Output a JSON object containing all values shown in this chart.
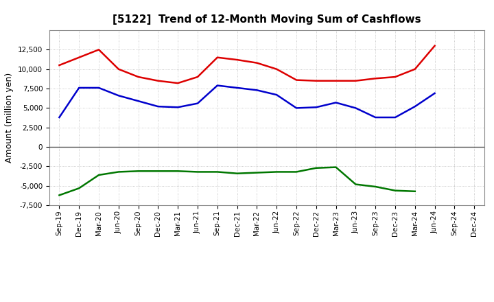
{
  "title": "[5122]  Trend of 12-Month Moving Sum of Cashflows",
  "ylabel": "Amount (million yen)",
  "x_labels": [
    "Sep-19",
    "Dec-19",
    "Mar-20",
    "Jun-20",
    "Sep-20",
    "Dec-20",
    "Mar-21",
    "Jun-21",
    "Sep-21",
    "Dec-21",
    "Mar-22",
    "Jun-22",
    "Sep-22",
    "Dec-22",
    "Mar-23",
    "Jun-23",
    "Sep-23",
    "Dec-23",
    "Mar-24",
    "Jun-24",
    "Sep-24",
    "Dec-24"
  ],
  "operating": [
    10500,
    11500,
    12500,
    10000,
    9000,
    8500,
    8200,
    9000,
    11500,
    11200,
    10800,
    10000,
    8600,
    8500,
    8500,
    8500,
    8800,
    9000,
    10000,
    13000,
    null,
    null
  ],
  "investing": [
    -6200,
    -5300,
    -3600,
    -3200,
    -3100,
    -3100,
    -3100,
    -3200,
    -3200,
    -3400,
    -3300,
    -3200,
    -3200,
    -2700,
    -2600,
    -4800,
    -5100,
    -5600,
    -5700,
    null,
    null,
    null
  ],
  "free": [
    3800,
    7600,
    7600,
    6600,
    5900,
    5200,
    5100,
    5600,
    7900,
    7600,
    7300,
    6700,
    5000,
    5100,
    5700,
    5000,
    3800,
    3800,
    5200,
    6900,
    null,
    null
  ],
  "ylim": [
    -7500,
    15000
  ],
  "yticks": [
    -7500,
    -5000,
    -2500,
    0,
    2500,
    5000,
    7500,
    10000,
    12500
  ],
  "operating_color": "#dd0000",
  "investing_color": "#007700",
  "free_color": "#0000cc",
  "bg_color": "#ffffff",
  "grid_color": "#bbbbbb",
  "zero_line_color": "#555555",
  "title_fontsize": 11,
  "axis_label_fontsize": 9,
  "tick_fontsize": 7.5,
  "legend_fontsize": 9
}
